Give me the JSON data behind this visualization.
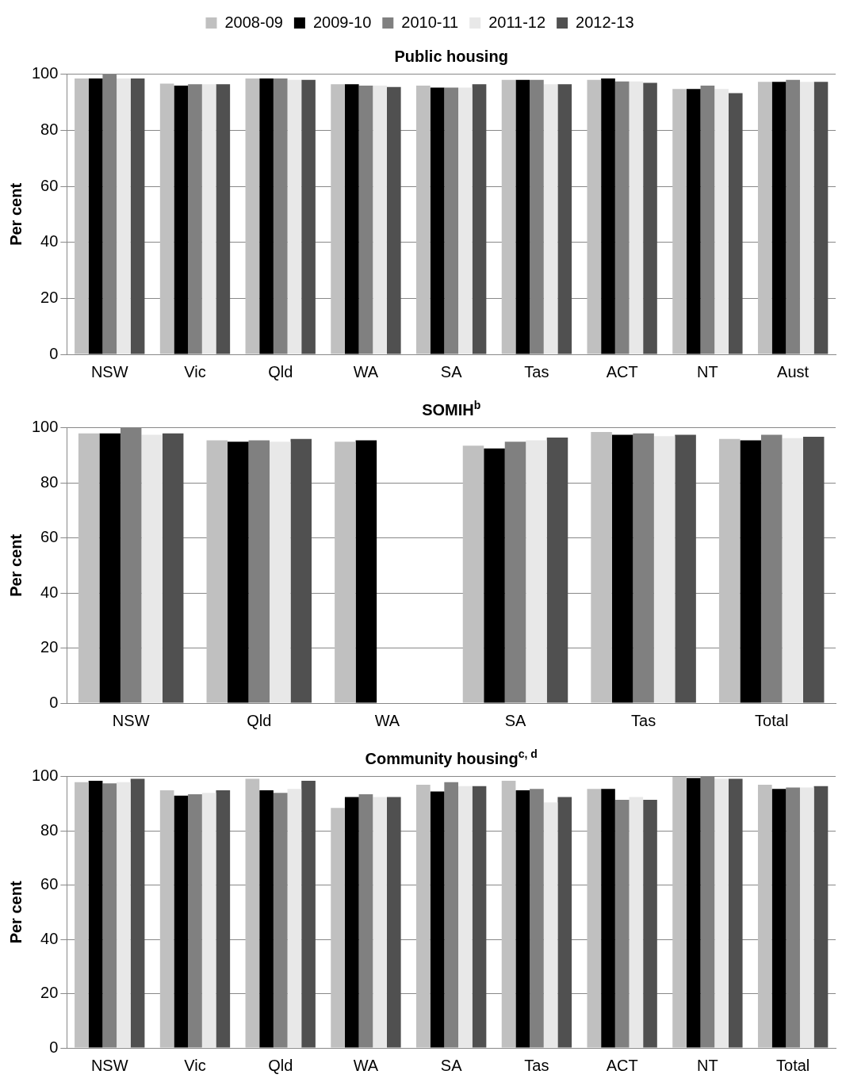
{
  "chart_data": [
    {
      "type": "bar",
      "title": "Public housing",
      "ylabel": "Per cent",
      "categories": [
        "NSW",
        "Vic",
        "Qld",
        "WA",
        "SA",
        "Tas",
        "ACT",
        "NT",
        "Aust"
      ],
      "ylim": [
        0,
        100
      ],
      "yticks": [
        0,
        20,
        40,
        60,
        80,
        100
      ],
      "grid": "y",
      "legend": "top",
      "series": [
        {
          "name": "2008-09",
          "color": "#c0c0c0",
          "values": [
            98.5,
            96.7,
            98.5,
            96.5,
            96,
            98,
            98,
            94.8,
            97.3
          ]
        },
        {
          "name": "2009-10",
          "color": "#000000",
          "values": [
            98.5,
            96,
            98.5,
            96.5,
            95.3,
            98,
            98.5,
            94.8,
            97.3
          ]
        },
        {
          "name": "2010-11",
          "color": "#808080",
          "values": [
            100,
            96.5,
            98.5,
            96,
            95.3,
            98,
            97.5,
            96,
            98
          ]
        },
        {
          "name": "2011-12",
          "color": "#e8e8e8",
          "values": [
            98.5,
            96.5,
            98,
            96,
            95.3,
            96.5,
            97.5,
            94.8,
            97.3
          ]
        },
        {
          "name": "2012-13",
          "color": "#505050",
          "values": [
            98.5,
            96.5,
            98,
            95.5,
            96.5,
            96.5,
            97,
            93.3,
            97.3
          ]
        }
      ]
    },
    {
      "type": "bar",
      "title": "SOMIH$^{b}$",
      "ylabel": "Per cent",
      "categories": [
        "NSW",
        "Qld",
        "WA",
        "SA",
        "Tas",
        "Total"
      ],
      "ylim": [
        0,
        100
      ],
      "yticks": [
        0,
        20,
        40,
        60,
        80,
        100
      ],
      "grid": "y",
      "series": [
        {
          "color": "#c0c0c0",
          "values": [
            98,
            95.5,
            95,
            93.5,
            98.5,
            96
          ]
        },
        {
          "color": "#000000",
          "values": [
            98,
            95,
            95.5,
            92.5,
            97.5,
            95.5
          ]
        },
        {
          "color": "#808080",
          "values": [
            100,
            95.5,
            null,
            95,
            98,
            97.5
          ]
        },
        {
          "color": "#e8e8e8",
          "values": [
            97.5,
            95,
            null,
            95.5,
            97,
            96.3
          ]
        },
        {
          "color": "#505050",
          "values": [
            98,
            96,
            null,
            96.5,
            97.5,
            96.8
          ]
        }
      ]
    },
    {
      "type": "bar",
      "title": "Community housing$^{c, d}$",
      "ylabel": "Per cent",
      "categories": [
        "NSW",
        "Vic",
        "Qld",
        "WA",
        "SA",
        "Tas",
        "ACT",
        "NT",
        "Total"
      ],
      "ylim": [
        0,
        100
      ],
      "yticks": [
        0,
        20,
        40,
        60,
        80,
        100
      ],
      "grid": "y",
      "series": [
        {
          "color": "#c0c0c0",
          "values": [
            98,
            95,
            99.2,
            88.5,
            97,
            98.5,
            95.5,
            100,
            97
          ]
        },
        {
          "color": "#000000",
          "values": [
            98.5,
            93,
            95,
            92.5,
            94.5,
            95,
            95.5,
            99.5,
            95.5
          ]
        },
        {
          "color": "#808080",
          "values": [
            97.5,
            93.5,
            94,
            93.5,
            98,
            95.5,
            91.5,
            100,
            96
          ]
        },
        {
          "color": "#e8e8e8",
          "values": [
            98,
            94,
            95.5,
            92.5,
            96.5,
            90.5,
            92.5,
            99.2,
            96
          ]
        },
        {
          "color": "#505050",
          "values": [
            99.2,
            95,
            98.5,
            92.5,
            96.5,
            92.5,
            91.5,
            99.2,
            96.5
          ]
        }
      ]
    }
  ]
}
